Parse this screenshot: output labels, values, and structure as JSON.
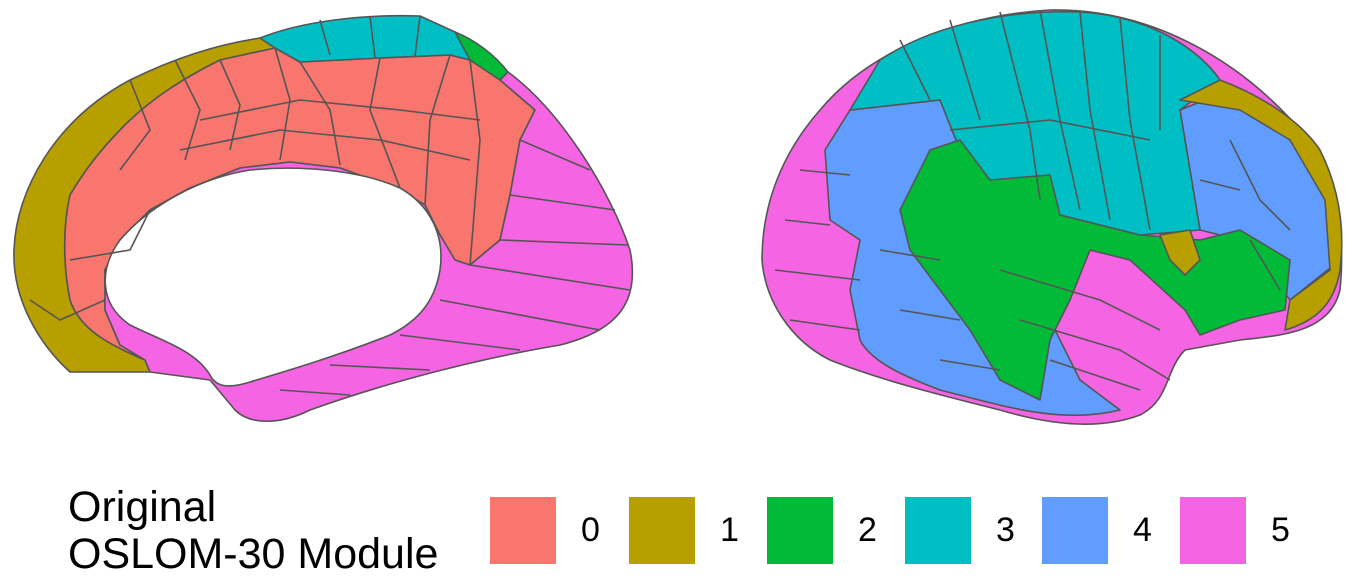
{
  "figure": {
    "legend": {
      "title": "Original\nOSLOM-30 Module",
      "entries": [
        {
          "label": "0",
          "color": "#F8766D"
        },
        {
          "label": "1",
          "color": "#B79F00"
        },
        {
          "label": "2",
          "color": "#00BA38"
        },
        {
          "label": "3",
          "color": "#00BFC4"
        },
        {
          "label": "4",
          "color": "#619CFF"
        },
        {
          "label": "5",
          "color": "#F564E3"
        }
      ]
    },
    "views": [
      {
        "name": "medial-view"
      },
      {
        "name": "lateral-view"
      }
    ]
  }
}
